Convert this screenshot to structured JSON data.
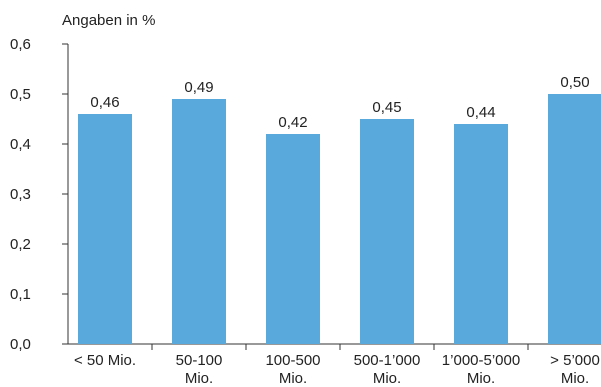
{
  "chart_data": {
    "type": "bar",
    "unit_label": "Angaben in %",
    "categories": [
      [
        "< 50 Mio."
      ],
      [
        "50-100",
        "Mio."
      ],
      [
        "100-500",
        "Mio."
      ],
      [
        "500-1’000",
        "Mio."
      ],
      [
        "1’000-5’000",
        "Mio."
      ],
      [
        "> 5’000",
        "Mio."
      ]
    ],
    "values": [
      0.46,
      0.49,
      0.42,
      0.45,
      0.44,
      0.5
    ],
    "value_labels": [
      "0,46",
      "0,49",
      "0,42",
      "0,45",
      "0,44",
      "0,50"
    ],
    "yticks": [
      "0,0",
      "0,1",
      "0,2",
      "0,3",
      "0,4",
      "0,5",
      "0,6"
    ],
    "ylim": [
      0,
      0.6
    ],
    "bar_color": "#5aa9dc",
    "axis_color": "#333333",
    "grid": false
  }
}
